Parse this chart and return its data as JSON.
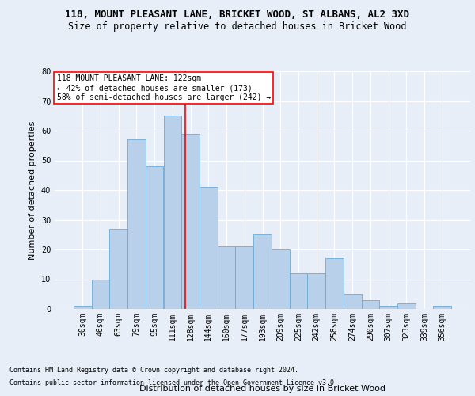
{
  "title1": "118, MOUNT PLEASANT LANE, BRICKET WOOD, ST ALBANS, AL2 3XD",
  "title2": "Size of property relative to detached houses in Bricket Wood",
  "xlabel": "Distribution of detached houses by size in Bricket Wood",
  "ylabel": "Number of detached properties",
  "footnote1": "Contains HM Land Registry data © Crown copyright and database right 2024.",
  "footnote2": "Contains public sector information licensed under the Open Government Licence v3.0.",
  "bar_labels": [
    "30sqm",
    "46sqm",
    "63sqm",
    "79sqm",
    "95sqm",
    "111sqm",
    "128sqm",
    "144sqm",
    "160sqm",
    "177sqm",
    "193sqm",
    "209sqm",
    "225sqm",
    "242sqm",
    "258sqm",
    "274sqm",
    "290sqm",
    "307sqm",
    "323sqm",
    "339sqm",
    "356sqm"
  ],
  "bar_values": [
    1,
    10,
    27,
    57,
    48,
    65,
    59,
    41,
    21,
    21,
    25,
    20,
    12,
    12,
    17,
    5,
    3,
    1,
    2,
    0,
    1
  ],
  "bar_color": "#b8d0ea",
  "bar_edge_color": "#6aaad4",
  "annotation_text_line1": "118 MOUNT PLEASANT LANE: 122sqm",
  "annotation_text_line2": "← 42% of detached houses are smaller (173)",
  "annotation_text_line3": "58% of semi-detached houses are larger (242) →",
  "vline_color": "red",
  "vline_x_bin": 6,
  "ylim": [
    0,
    80
  ],
  "yticks": [
    0,
    10,
    20,
    30,
    40,
    50,
    60,
    70,
    80
  ],
  "bg_color": "#e8eef8",
  "plot_bg_color": "#e8eef8",
  "annotation_box_color": "white",
  "annotation_box_edge": "red",
  "title1_fontsize": 9,
  "title2_fontsize": 8.5,
  "xlabel_fontsize": 8,
  "ylabel_fontsize": 8,
  "tick_fontsize": 7,
  "footnote_fontsize": 6,
  "annotation_fontsize": 7
}
